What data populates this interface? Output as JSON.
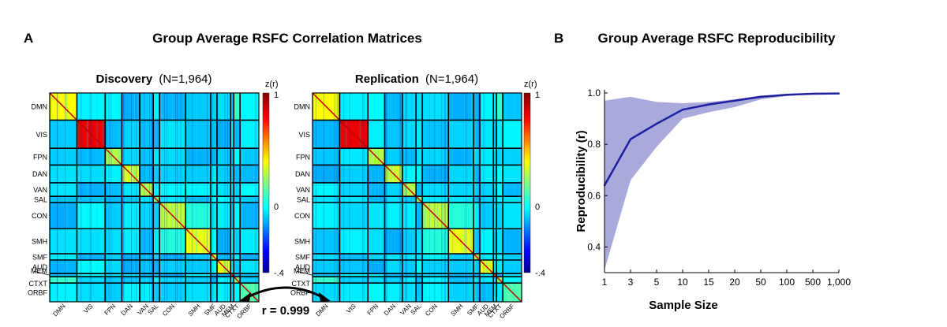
{
  "panel_a": {
    "letter": "A",
    "title": "Group Average RSFC Correlation Matrices",
    "matrices": [
      {
        "title_bold": "Discovery",
        "title_rest": "(N=1,964)"
      },
      {
        "title_bold": "Replication",
        "title_rest": "(N=1,964)"
      }
    ],
    "networks": [
      "DMN",
      "VIS",
      "FPN",
      "DAN",
      "VAN",
      "SAL",
      "CON",
      "SMH",
      "SMF",
      "AUD",
      "MEM",
      "CTXT",
      "ORBF"
    ],
    "colorbar": {
      "label": "z(r)",
      "ticks": [
        "1",
        "0",
        "-.4"
      ],
      "range": [
        -0.4,
        1
      ]
    },
    "comparison": "r = 0.999"
  },
  "panel_b": {
    "letter": "B",
    "title": "Group Average RSFC Reproducibility"
  },
  "chart_data": {
    "type": "line",
    "xlabel": "Sample Size",
    "ylabel": "Reproducibility (r)",
    "x_categories": [
      "1",
      "3",
      "5",
      "10",
      "15",
      "20",
      "50",
      "100",
      "500",
      "1,000"
    ],
    "y_ticks": [
      0.4,
      0.6,
      0.8,
      1.0
    ],
    "y_tick_labels": [
      "0.4",
      "0.6",
      "0.8",
      "1.0"
    ],
    "ylim": [
      0.3,
      1.0
    ],
    "series": [
      {
        "values": [
          0.64,
          0.82,
          0.88,
          0.935,
          0.955,
          0.97,
          0.985,
          0.993,
          0.997,
          0.998
        ],
        "lower": [
          0.31,
          0.66,
          0.79,
          0.9,
          0.925,
          0.945,
          0.975,
          0.988,
          0.995,
          0.997
        ],
        "upper": [
          0.97,
          0.985,
          0.965,
          0.96,
          0.965,
          0.975,
          0.99,
          0.995,
          0.998,
          0.999
        ]
      }
    ],
    "colors": {
      "line": "#1f1fa0",
      "band": "#a9a9dc"
    }
  }
}
